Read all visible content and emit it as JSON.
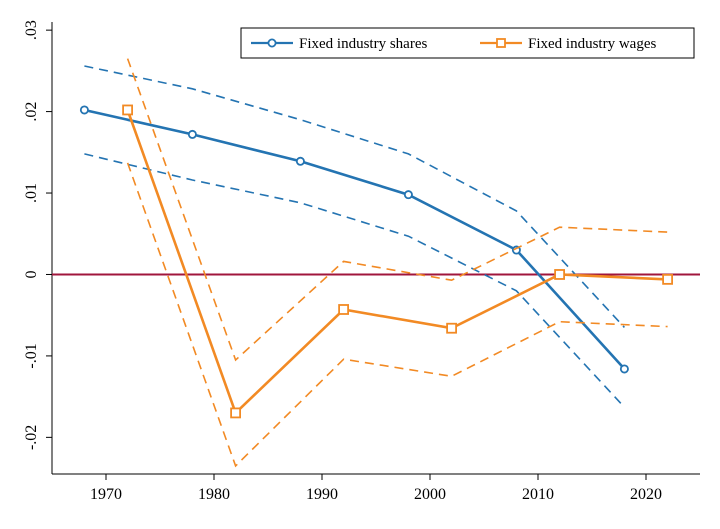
{
  "chart_data": {
    "type": "line",
    "title": "",
    "xlabel": "",
    "ylabel": "",
    "xlim": [
      1965,
      2025
    ],
    "ylim": [
      -0.0245,
      0.031
    ],
    "x_ticks": [
      1970,
      1980,
      1990,
      2000,
      2010,
      2020
    ],
    "x_tick_labels": [
      "1970",
      "1980",
      "1990",
      "2000",
      "2010",
      "2020"
    ],
    "y_ticks": [
      -0.02,
      -0.01,
      0,
      0.01,
      0.02,
      0.03
    ],
    "y_tick_labels": [
      "-.02",
      "-.01",
      "0",
      ".01",
      ".02",
      ".03"
    ],
    "grid": false,
    "reference_line": {
      "y": 0,
      "color": "#a0163c"
    },
    "legend": {
      "position": "top-right"
    },
    "series": [
      {
        "name": "Fixed industry shares",
        "color": "#2474b2",
        "marker": "circle",
        "x": [
          1968,
          1978,
          1988,
          1998,
          2008,
          2018
        ],
        "values": [
          0.0202,
          0.0172,
          0.0139,
          0.0098,
          0.003,
          -0.0116
        ],
        "ci_upper": [
          0.0256,
          0.0228,
          0.019,
          0.0148,
          0.0078,
          -0.0065
        ],
        "ci_lower": [
          0.0148,
          0.0116,
          0.0088,
          0.0047,
          -0.002,
          -0.0163
        ]
      },
      {
        "name": "Fixed industry wages",
        "color": "#f28a24",
        "marker": "square",
        "x": [
          1972,
          1982,
          1992,
          2002,
          2012,
          2022
        ],
        "values": [
          0.0202,
          -0.017,
          -0.0043,
          -0.0066,
          0.0,
          -0.0006
        ],
        "ci_upper": [
          0.0265,
          -0.0105,
          0.0016,
          -0.0007,
          0.0058,
          0.0052
        ],
        "ci_lower": [
          0.0137,
          -0.0235,
          -0.0104,
          -0.0125,
          -0.0058,
          -0.0064
        ]
      }
    ]
  }
}
